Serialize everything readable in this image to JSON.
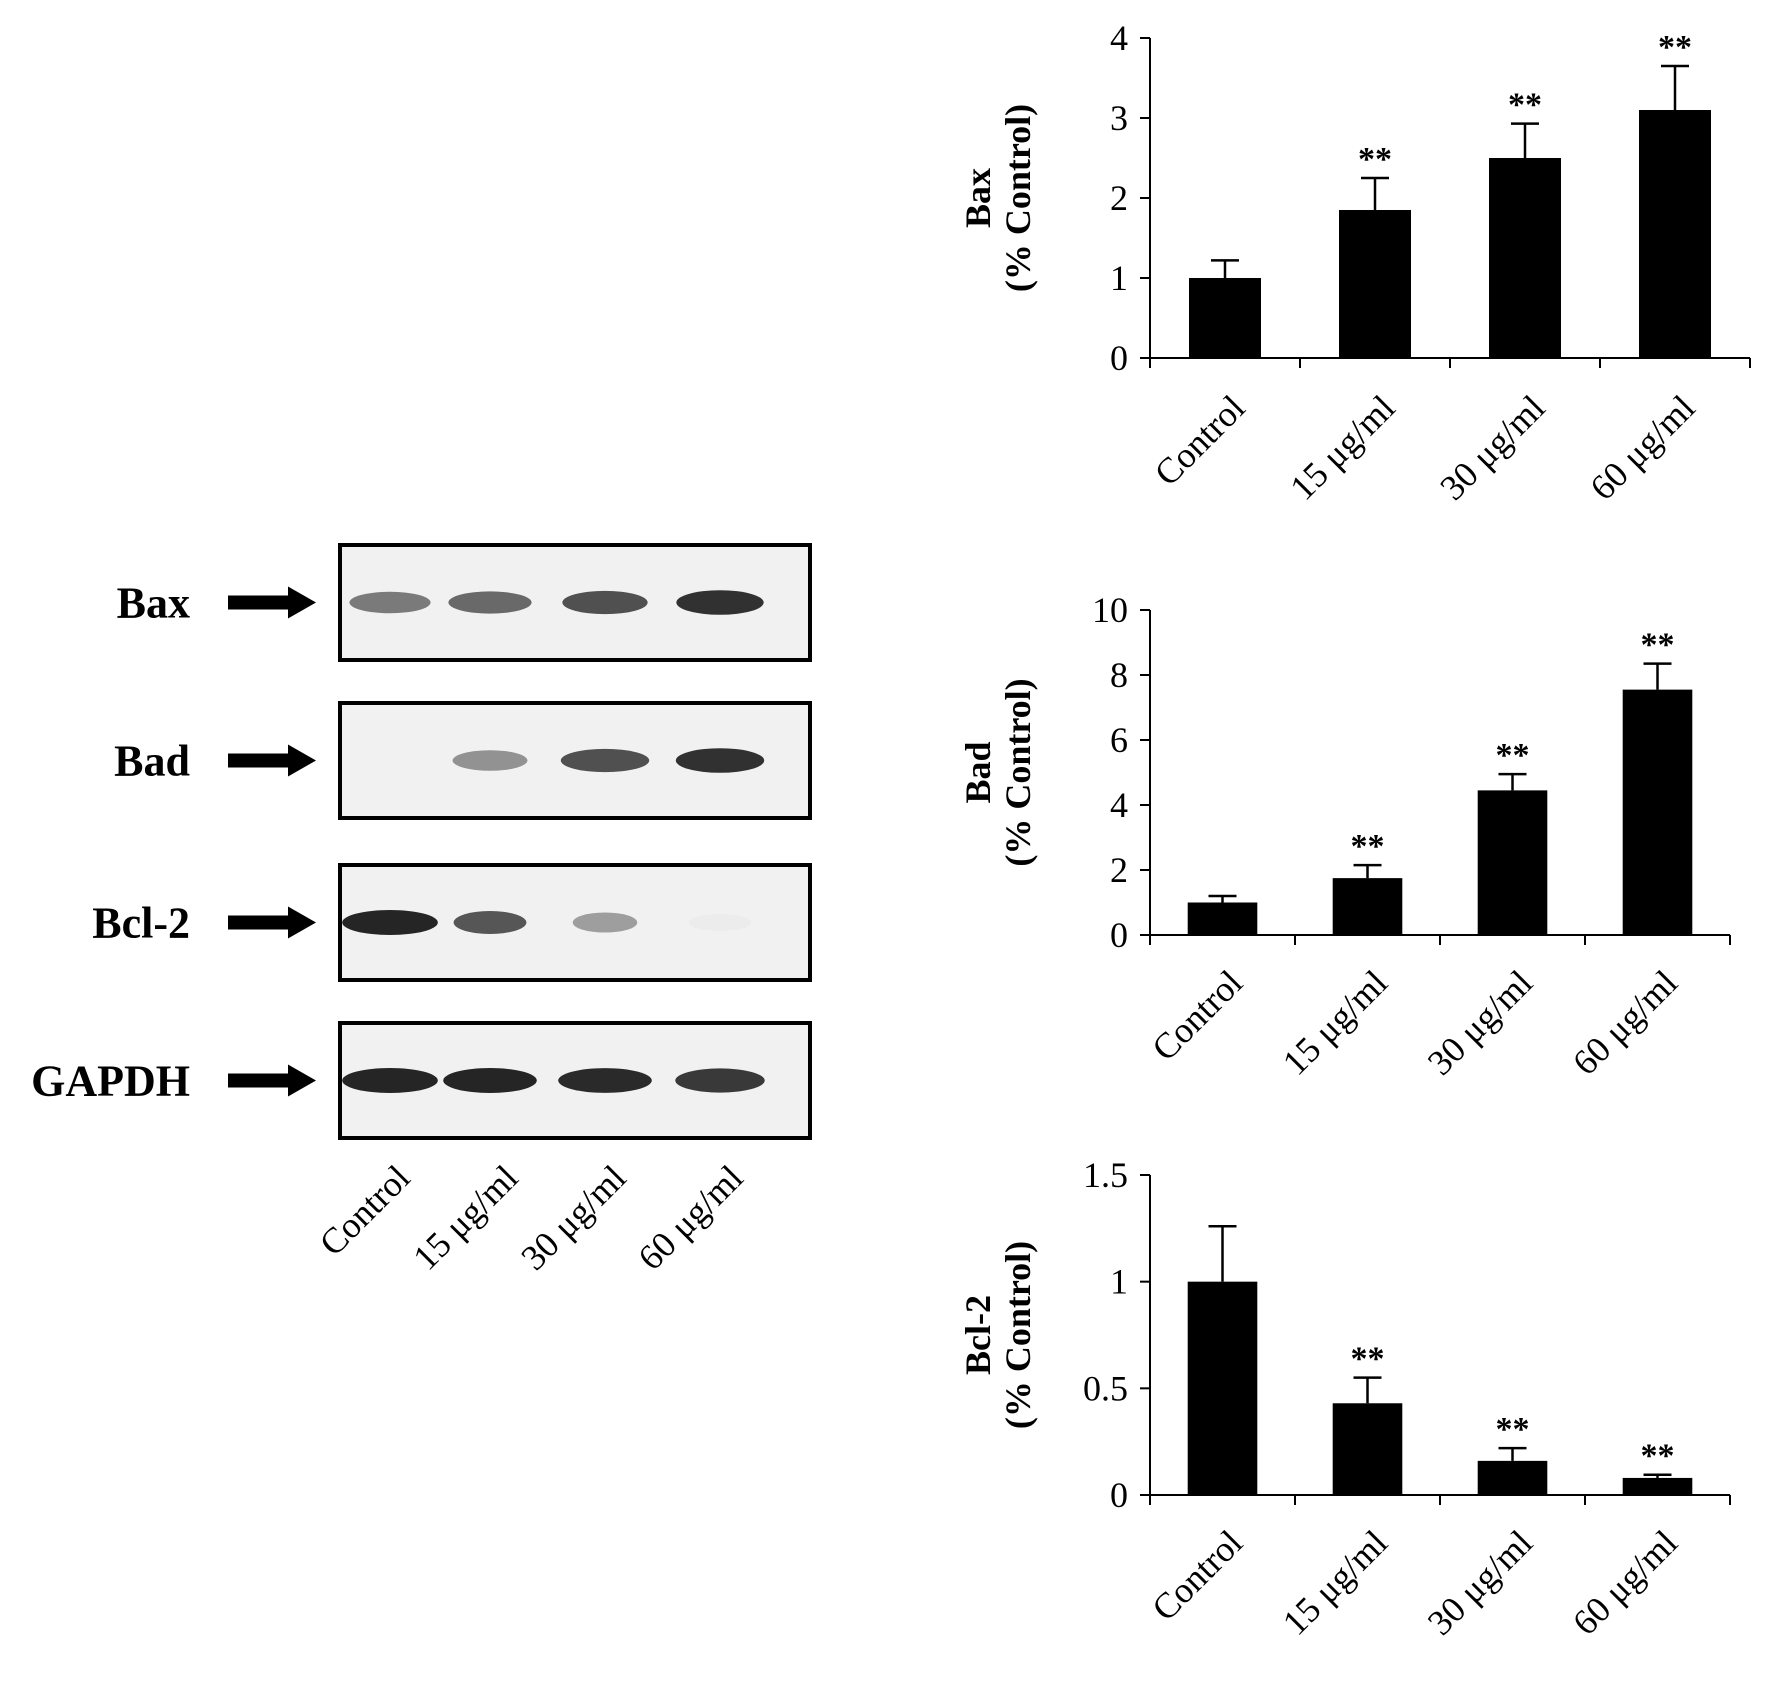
{
  "western_blot": {
    "rows": [
      {
        "label": "Bax",
        "band_intensity": [
          0.55,
          0.62,
          0.72,
          0.85
        ],
        "band_width": [
          0.78,
          0.8,
          0.82,
          0.84
        ]
      },
      {
        "label": "Bad",
        "band_intensity": [
          0.0,
          0.45,
          0.72,
          0.85
        ],
        "band_width": [
          0.0,
          0.72,
          0.85,
          0.85
        ]
      },
      {
        "label": "Bcl-2",
        "band_intensity": [
          0.9,
          0.7,
          0.4,
          0.08
        ],
        "band_width": [
          0.92,
          0.7,
          0.62,
          0.6
        ]
      },
      {
        "label": "GAPDH",
        "band_intensity": [
          0.9,
          0.9,
          0.88,
          0.82
        ],
        "band_width": [
          0.92,
          0.9,
          0.9,
          0.86
        ]
      }
    ],
    "lanes": [
      "Control",
      "15 μg/ml",
      "30 μg/ml",
      "60 μg/ml"
    ]
  },
  "chart_data": [
    {
      "type": "bar",
      "ylabel_lines": [
        "Bax",
        "(% Control)"
      ],
      "categories": [
        "Control",
        "15 μg/ml",
        "30 μg/ml",
        "60 μg/ml"
      ],
      "values": [
        1.0,
        1.85,
        2.5,
        3.1
      ],
      "errors": [
        0.22,
        0.4,
        0.43,
        0.55
      ],
      "significance": [
        "",
        "**",
        "**",
        "**"
      ],
      "ylim": [
        0,
        4
      ],
      "yticks": [
        0,
        1,
        2,
        3,
        4
      ],
      "ytick_labels": [
        "0",
        "1",
        "2",
        "3",
        "4"
      ]
    },
    {
      "type": "bar",
      "ylabel_lines": [
        "Bad",
        "(% Control)"
      ],
      "categories": [
        "Control",
        "15 μg/ml",
        "30 μg/ml",
        "60 μg/ml"
      ],
      "values": [
        1.0,
        1.75,
        4.45,
        7.55
      ],
      "errors": [
        0.2,
        0.4,
        0.5,
        0.8
      ],
      "significance": [
        "",
        "**",
        "**",
        "**"
      ],
      "ylim": [
        0,
        10
      ],
      "yticks": [
        0,
        2,
        4,
        6,
        8,
        10
      ],
      "ytick_labels": [
        "0",
        "2",
        "4",
        "6",
        "8",
        "10"
      ]
    },
    {
      "type": "bar",
      "ylabel_lines": [
        "Bcl-2",
        "(% Control)"
      ],
      "categories": [
        "Control",
        "15 μg/ml",
        "30 μg/ml",
        "60 μg/ml"
      ],
      "values": [
        1.0,
        0.43,
        0.16,
        0.08
      ],
      "errors": [
        0.26,
        0.12,
        0.06,
        0.015
      ],
      "significance": [
        "",
        "**",
        "**",
        "**"
      ],
      "ylim": [
        0,
        1.5
      ],
      "yticks": [
        0,
        0.5,
        1,
        1.5
      ],
      "ytick_labels": [
        "0",
        "0.5",
        "1",
        "1.5"
      ]
    }
  ]
}
